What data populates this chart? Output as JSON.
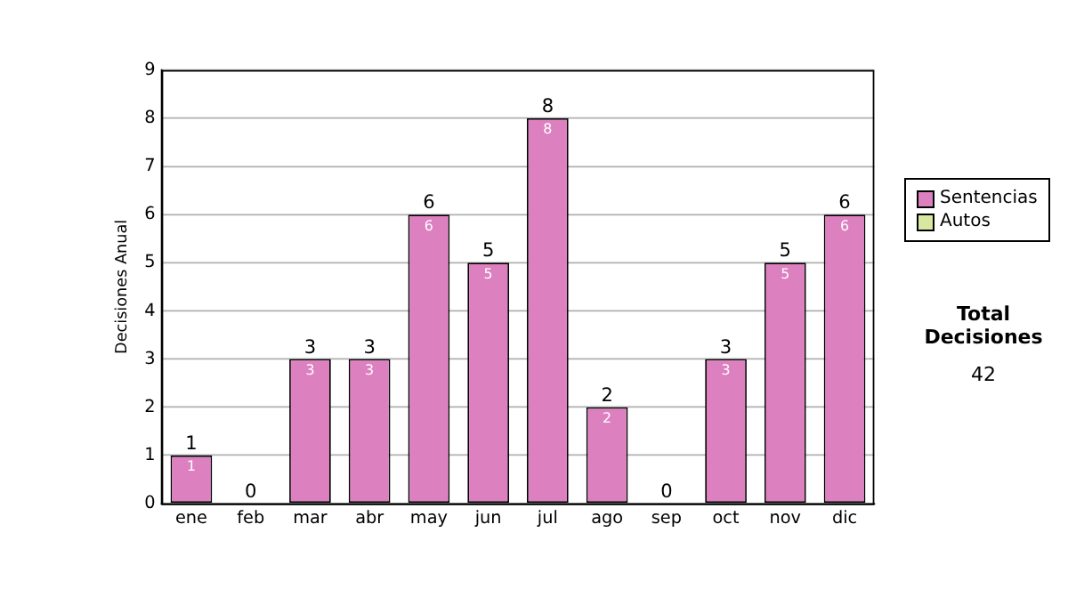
{
  "chart_data": {
    "type": "bar",
    "ylabel": "Decisiones Anual",
    "categories": [
      "ene",
      "feb",
      "mar",
      "abr",
      "may",
      "jun",
      "jul",
      "ago",
      "sep",
      "oct",
      "nov",
      "dic"
    ],
    "series": [
      {
        "name": "Sentencias",
        "color": "#dd80c0",
        "values": [
          1,
          0,
          3,
          3,
          6,
          5,
          8,
          2,
          0,
          3,
          5,
          6
        ],
        "value_labels": [
          "1",
          null,
          "3",
          "3",
          "6",
          "5",
          "8",
          "2",
          null,
          "3",
          "5",
          "6"
        ]
      },
      {
        "name": "Autos",
        "color": "#d8e8a0",
        "values": [
          0,
          0,
          0,
          0,
          0,
          0,
          0,
          0,
          0,
          0,
          0,
          0
        ]
      }
    ],
    "stacked": true,
    "totals": [
      "1",
      "0",
      "3",
      "3",
      "6",
      "5",
      "8",
      "2",
      "0",
      "3",
      "5",
      "6"
    ],
    "ylim": [
      0,
      9
    ],
    "yticks": [
      0,
      1,
      2,
      3,
      4,
      5,
      6,
      7,
      8,
      9
    ],
    "grid": "y",
    "legend": "right",
    "annotations": [
      "Total Decisiones",
      "42"
    ]
  }
}
